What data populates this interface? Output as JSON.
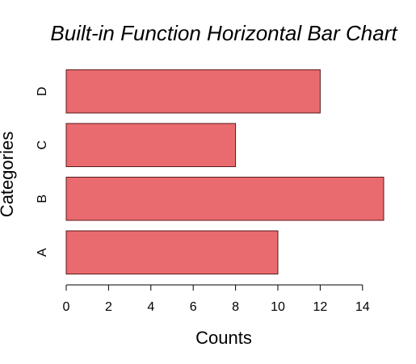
{
  "chart_data": {
    "type": "bar",
    "orientation": "horizontal",
    "title": "Built-in Function Horizontal Bar Chart",
    "xlabel": "Counts",
    "ylabel": "Categories",
    "categories": [
      "A",
      "B",
      "C",
      "D"
    ],
    "values": [
      10,
      15,
      8,
      12
    ],
    "xlim": [
      0,
      15
    ],
    "xticks": [
      0,
      2,
      4,
      6,
      8,
      10,
      12,
      14
    ],
    "grid": false,
    "legend": "none",
    "bar_color": "#EA6B6F",
    "bar_stroke": "#5A1A1A"
  }
}
